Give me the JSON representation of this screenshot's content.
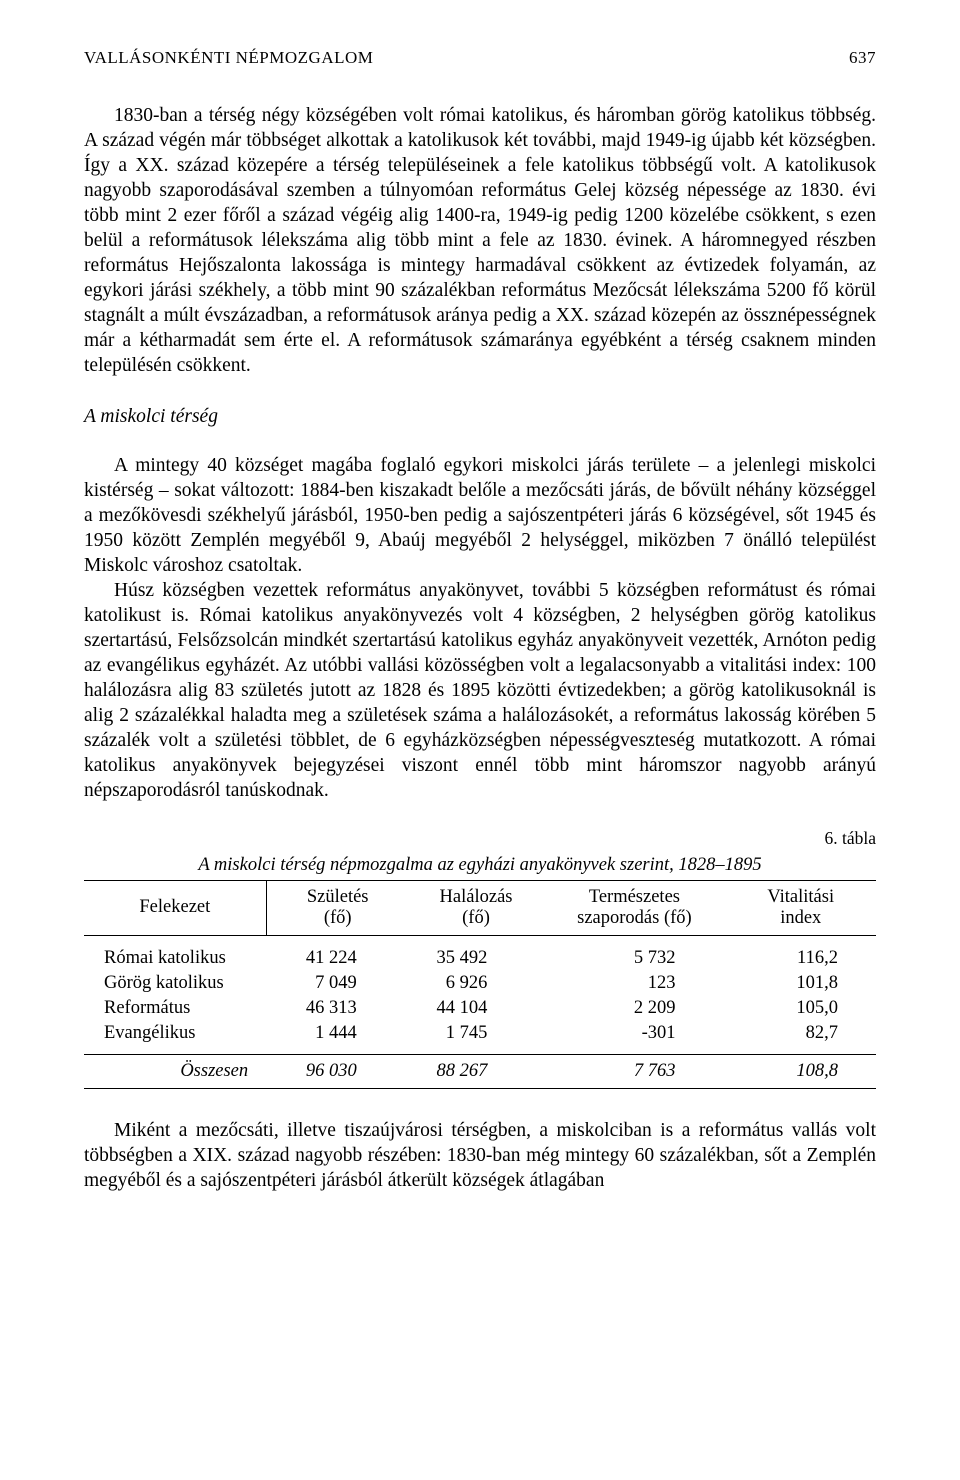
{
  "header": {
    "running_title": "VALLÁSONKÉNTI NÉPMOZGALOM",
    "page_number": "637"
  },
  "paragraphs": {
    "p1": "1830-ban a térség négy községében volt római katolikus, és háromban görög katolikus többség. A század végén már többséget alkottak a katolikusok két további, majd 1949-ig újabb két községben. Így a XX. század közepére a térség településeinek a fele katolikus többségű volt. A katolikusok nagyobb szaporodásával szemben a túlnyomóan református Gelej község népessége az 1830. évi több mint 2 ezer főről a század végéig alig 1400-ra, 1949-ig pedig 1200 közelébe csökkent, s ezen belül a reformátusok lélekszáma alig több mint a fele az 1830. évinek. A háromnegyed részben református Hejőszalonta lakossága is mintegy harmadával csökkent az évtizedek folyamán, az egykori járási székhely, a több mint 90 százalékban református Mezőcsát lélekszáma 5200 fő körül stagnált a múlt évszázadban, a reformátusok aránya pedig a XX. század közepén az össznépességnek már a kétharmadát sem érte el. A reformátusok számaránya egyébként a térség csaknem minden településén csökkent.",
    "section_title": "A miskolci térség",
    "p2": "A mintegy 40 községet magába foglaló egykori miskolci járás területe – a jelenlegi miskolci kistérség – sokat változott: 1884-ben kiszakadt belőle a mezőcsáti járás, de bővült néhány községgel a mezőkövesdi székhelyű járásból, 1950-ben pedig a sajószentpéteri járás 6 községével, sőt 1945 és 1950 között Zemplén megyéből 9, Abaúj megyéből 2 helységgel, miközben 7 önálló települést Miskolc városhoz csatoltak.",
    "p3": "Húsz községben vezettek református anyakönyvet, további 5 községben reformátust és római katolikust is. Római katolikus anyakönyvezés volt 4 községben, 2 helységben görög katolikus szertartású, Felsőzsolcán mindkét szertartású katolikus egyház anyakönyveit vezették, Arnóton pedig az evangélikus egyházét. Az utóbbi vallási közösségben volt a legalacsonyabb a vitalitási index: 100 halálozásra alig 83 születés jutott az 1828 és 1895 közötti évtizedekben; a görög katolikusoknál is alig 2 százalékkal haladta meg a születések száma a halálozásokét, a református lakosság körében 5 százalék volt a születési többlet, de 6 egyházközségben népességveszteség mutatkozott. A római katolikus anyakönyvek bejegyzései viszont ennél több mint háromszor nagyobb arányú népszaporodásról tanúskodnak.",
    "p4": "Miként a mezőcsáti, illetve tiszaújvárosi térségben, a miskolciban is a református vallás volt többségben a XIX. század nagyobb részében: 1830-ban még mintegy 60 százalékban, sőt a Zemplén megyéből és a sajószentpéteri járásból átkerült községek átlagában"
  },
  "table": {
    "label": "6. tábla",
    "caption": "A miskolci térség népmozgalma az egyházi anyakönyvek szerint, 1828–1895",
    "columns": {
      "c1": "Felekezet",
      "c2a": "Születés",
      "c2b": "(fő)",
      "c3a": "Halálozás",
      "c3b": "(fő)",
      "c4a": "Természetes",
      "c4b": "szaporodás (fő)",
      "c5a": "Vitalitási",
      "c5b": "index"
    },
    "rows": [
      {
        "label": "Római katolikus",
        "birth": "41 224",
        "death": "35 492",
        "growth": "5 732",
        "index": "116,2"
      },
      {
        "label": "Görög katolikus",
        "birth": "7 049",
        "death": "6 926",
        "growth": "123",
        "index": "101,8"
      },
      {
        "label": "Református",
        "birth": "46 313",
        "death": "44 104",
        "growth": "2 209",
        "index": "105,0"
      },
      {
        "label": "Evangélikus",
        "birth": "1 444",
        "death": "1 745",
        "growth": "-301",
        "index": "82,7"
      }
    ],
    "total": {
      "label": "Összesen",
      "birth": "96 030",
      "death": "88 267",
      "growth": "7 763",
      "index": "108,8"
    }
  }
}
